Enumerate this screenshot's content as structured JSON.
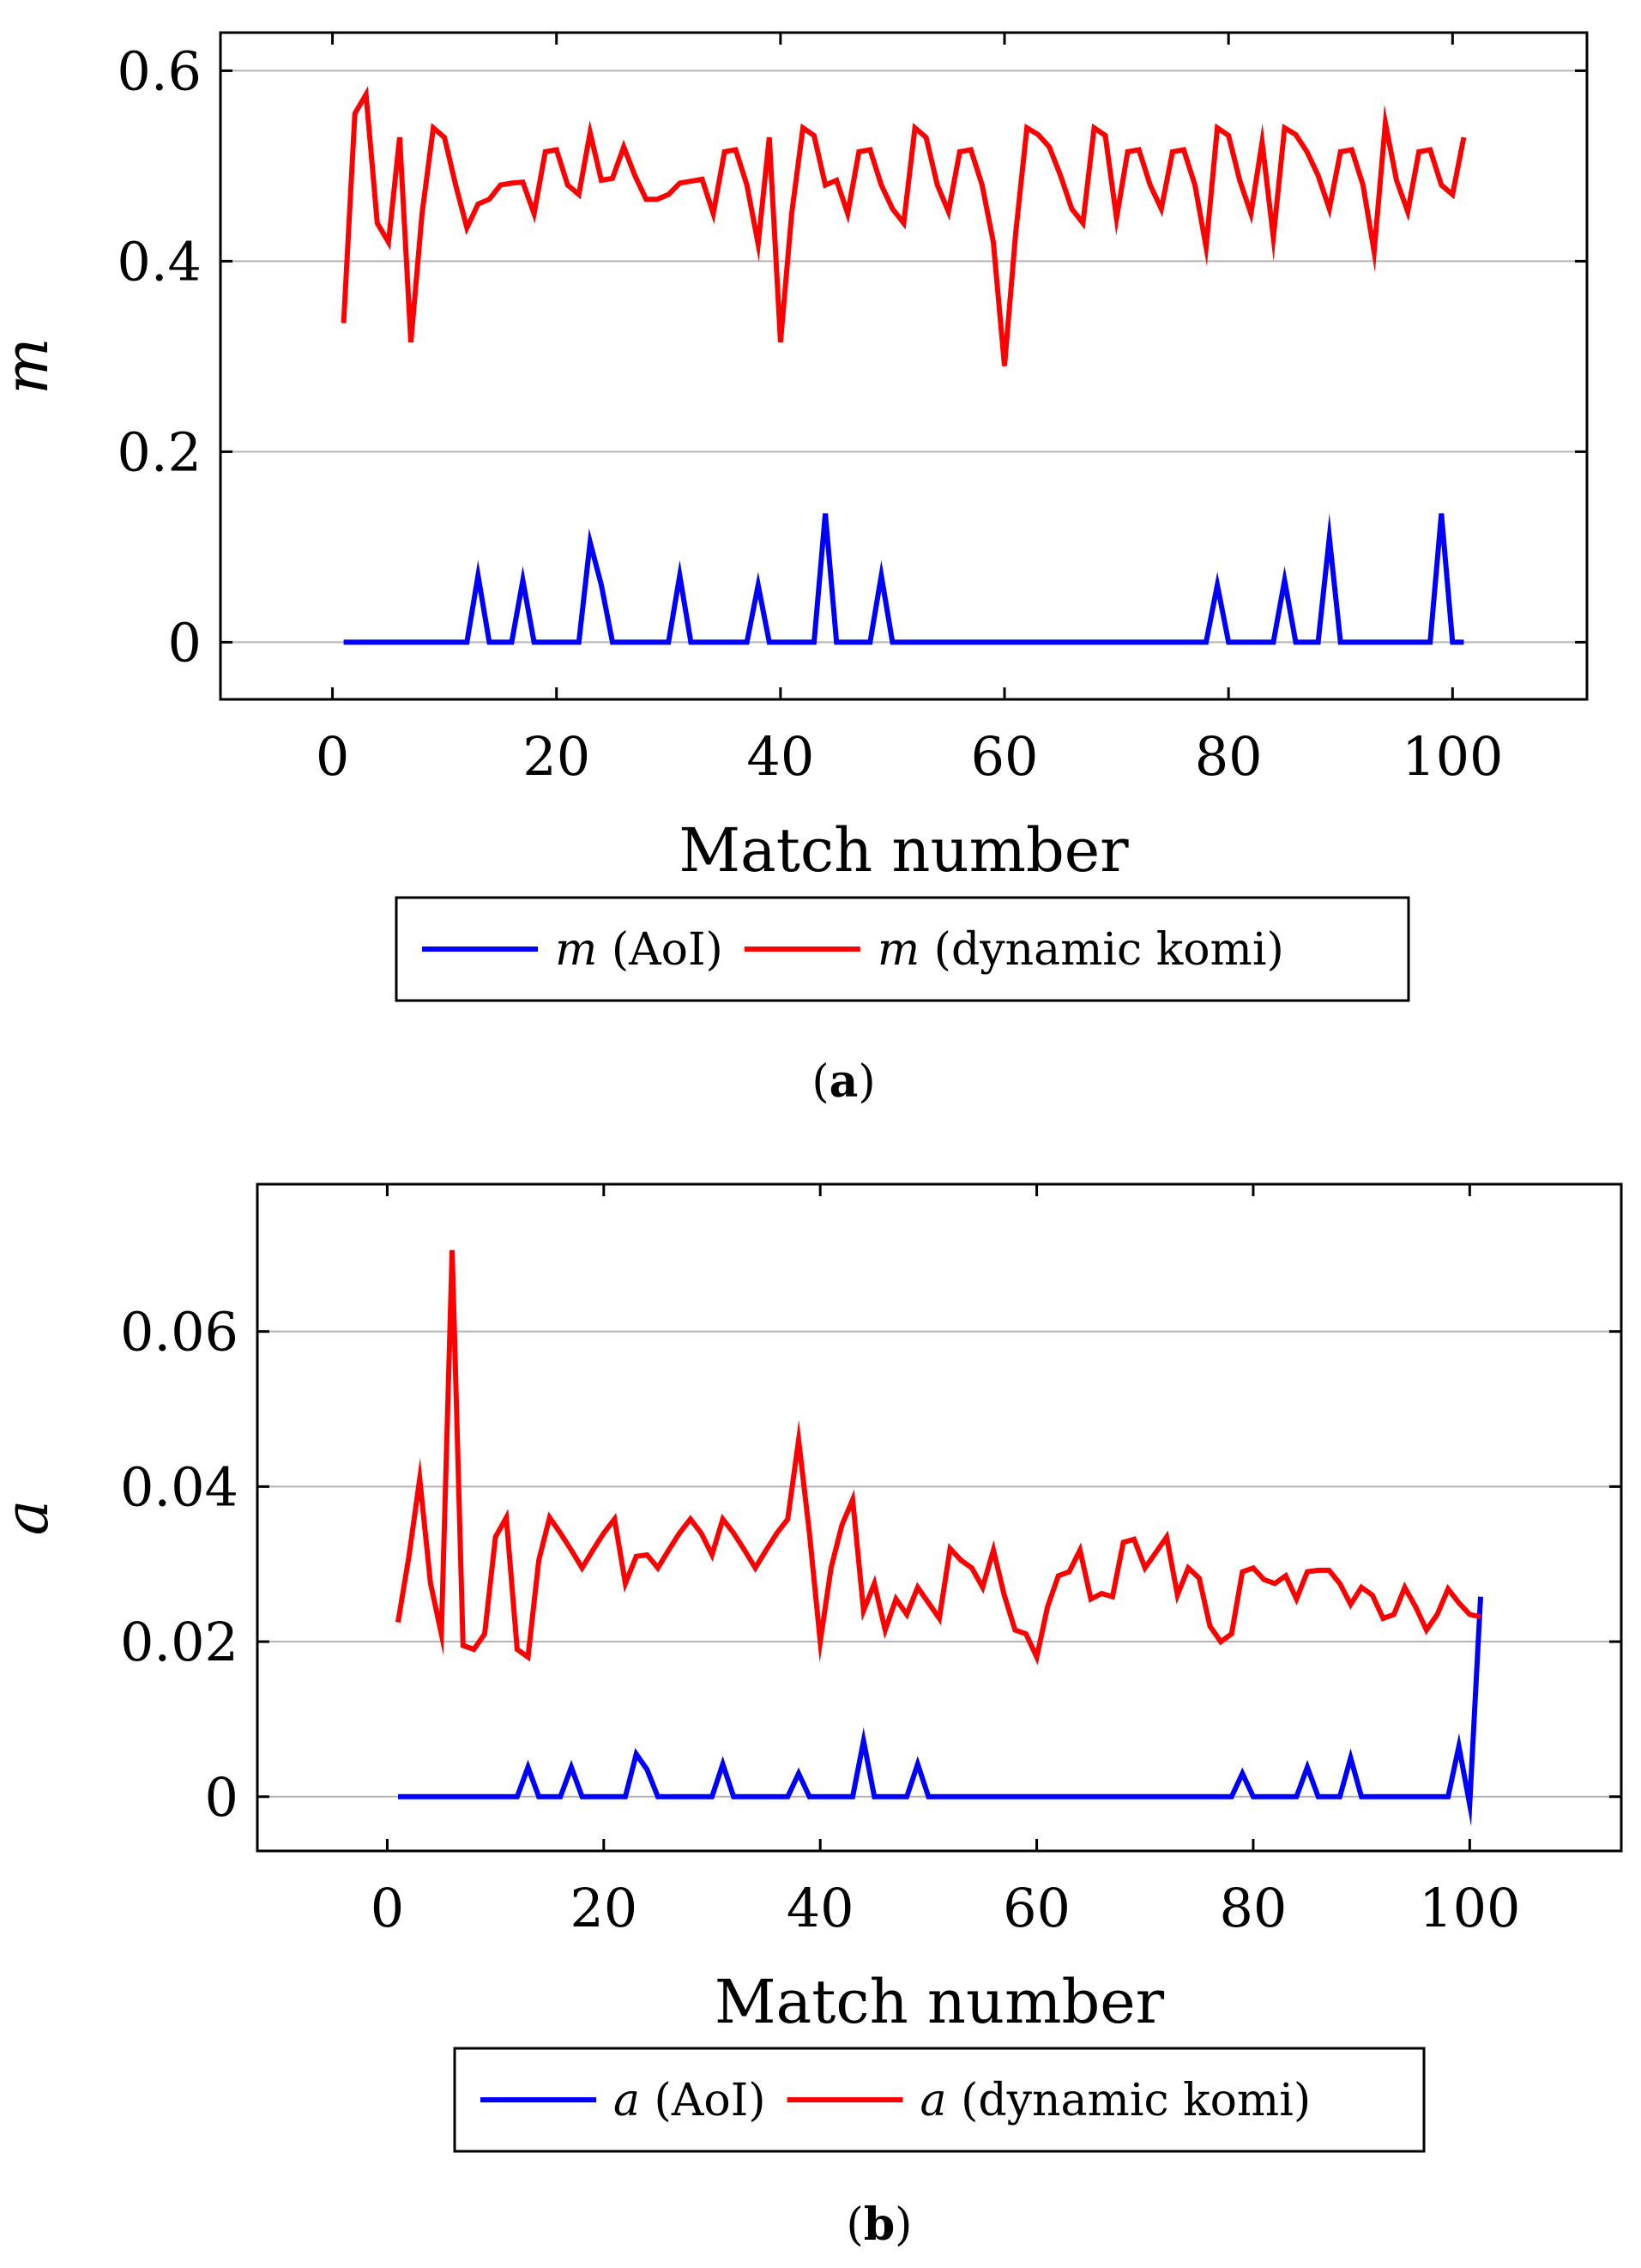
{
  "chart_data": [
    {
      "type": "line",
      "panel": "a",
      "caption": {
        "open": "(",
        "letter": "a",
        "close": ")"
      },
      "xlabel": "Match number",
      "ylabel": "m",
      "xlim": [
        -10,
        112
      ],
      "ylim": [
        -0.06,
        0.64
      ],
      "xticks": [
        0,
        20,
        40,
        60,
        80,
        100
      ],
      "xtick_labels": [
        "0",
        "20",
        "40",
        "60",
        "80",
        "100"
      ],
      "yticks": [
        0,
        0.2,
        0.4,
        0.6
      ],
      "ytick_labels": [
        "0",
        "0.2",
        "0.4",
        "0.6"
      ],
      "grid": "horizontal",
      "legend_position": "below",
      "series": [
        {
          "name": "m (AoI)",
          "legend_symbol": "m",
          "legend_rest": " (AoI)",
          "color": "#0000ff",
          "x": [
            1,
            12,
            13,
            14,
            16,
            17,
            18,
            22,
            23,
            24,
            25,
            30,
            31,
            32,
            37,
            38,
            39,
            43,
            44,
            45,
            48,
            49,
            50,
            78,
            79,
            80,
            84,
            85,
            86,
            88,
            89,
            90,
            98,
            99,
            100,
            101
          ],
          "y": [
            0,
            0,
            0.07,
            0,
            0,
            0.065,
            0,
            0,
            0.105,
            0.06,
            0,
            0,
            0.07,
            0,
            0,
            0.06,
            0,
            0,
            0.135,
            0,
            0,
            0.07,
            0,
            0,
            0.06,
            0,
            0,
            0.065,
            0,
            0,
            0.11,
            0,
            0,
            0.135,
            0,
            0
          ]
        },
        {
          "name": "m (dynamic komi)",
          "legend_symbol": "m",
          "legend_rest": " (dynamic komi)",
          "color": "#ff0000",
          "x": [
            1,
            2,
            3,
            4,
            5,
            6,
            7,
            8,
            9,
            10,
            11,
            12,
            13,
            14,
            15,
            16,
            17,
            18,
            19,
            20,
            21,
            22,
            23,
            24,
            25,
            26,
            27,
            28,
            29,
            30,
            31,
            32,
            33,
            34,
            35,
            36,
            37,
            38,
            39,
            40,
            41,
            42,
            43,
            44,
            45,
            46,
            47,
            48,
            49,
            50,
            51,
            52,
            53,
            54,
            55,
            56,
            57,
            58,
            59,
            60,
            61,
            62,
            63,
            64,
            65,
            66,
            67,
            68,
            69,
            70,
            71,
            72,
            73,
            74,
            75,
            76,
            77,
            78,
            79,
            80,
            81,
            82,
            83,
            84,
            85,
            86,
            87,
            88,
            89,
            90,
            91,
            92,
            93,
            94,
            95,
            96,
            97,
            98,
            99,
            100,
            101
          ],
          "y": [
            0.335,
            0.555,
            0.575,
            0.44,
            0.42,
            0.53,
            0.315,
            0.45,
            0.54,
            0.53,
            0.48,
            0.435,
            0.46,
            0.465,
            0.48,
            0.482,
            0.483,
            0.45,
            0.515,
            0.517,
            0.48,
            0.47,
            0.535,
            0.485,
            0.487,
            0.52,
            0.49,
            0.465,
            0.465,
            0.47,
            0.482,
            0.484,
            0.486,
            0.45,
            0.515,
            0.517,
            0.48,
            0.418,
            0.53,
            0.315,
            0.45,
            0.54,
            0.532,
            0.48,
            0.485,
            0.45,
            0.515,
            0.517,
            0.48,
            0.455,
            0.44,
            0.54,
            0.53,
            0.48,
            0.452,
            0.515,
            0.517,
            0.48,
            0.42,
            0.29,
            0.43,
            0.54,
            0.533,
            0.52,
            0.49,
            0.455,
            0.44,
            0.54,
            0.532,
            0.445,
            0.515,
            0.517,
            0.48,
            0.455,
            0.515,
            0.517,
            0.48,
            0.415,
            0.54,
            0.532,
            0.485,
            0.45,
            0.525,
            0.425,
            0.54,
            0.533,
            0.515,
            0.49,
            0.455,
            0.515,
            0.517,
            0.48,
            0.41,
            0.545,
            0.485,
            0.452,
            0.515,
            0.517,
            0.48,
            0.47,
            0.53
          ]
        }
      ]
    },
    {
      "type": "line",
      "panel": "b",
      "caption": {
        "open": "(",
        "letter": "b",
        "close": ")"
      },
      "xlabel": "Match number",
      "ylabel": "a",
      "xlim": [
        -12,
        114
      ],
      "ylim": [
        -0.007,
        0.079
      ],
      "xticks": [
        0,
        20,
        40,
        60,
        80,
        100
      ],
      "xtick_labels": [
        "0",
        "20",
        "40",
        "60",
        "80",
        "100"
      ],
      "yticks": [
        0,
        0.02,
        0.04,
        0.06
      ],
      "ytick_labels": [
        "0",
        "0.02",
        "0.04",
        "0.06"
      ],
      "grid": "horizontal",
      "legend_position": "below",
      "series": [
        {
          "name": "a (AoI)",
          "legend_symbol": "a",
          "legend_rest": " (AoI)",
          "color": "#0000ff",
          "x": [
            1,
            12,
            13,
            14,
            16,
            17,
            18,
            22,
            23,
            24,
            25,
            30,
            31,
            32,
            37,
            38,
            39,
            43,
            44,
            45,
            48,
            49,
            50,
            78,
            79,
            80,
            84,
            85,
            86,
            88,
            89,
            90,
            98,
            99,
            100,
            101
          ],
          "y": [
            0,
            0,
            0.0038,
            0,
            0,
            0.0038,
            0,
            0,
            0.0055,
            0.0035,
            0,
            0,
            0.0042,
            0,
            0,
            0.003,
            0,
            0,
            0.0072,
            0,
            0,
            0.0042,
            0,
            0,
            0.003,
            0,
            0,
            0.0038,
            0,
            0,
            0.005,
            0,
            0,
            0.0065,
            -0.001,
            0.0258
          ]
        },
        {
          "name": "a (dynamic komi)",
          "legend_symbol": "a",
          "legend_rest": " (dynamic komi)",
          "color": "#ff0000",
          "x": [
            1,
            2,
            3,
            4,
            5,
            6,
            7,
            8,
            9,
            10,
            11,
            12,
            13,
            14,
            15,
            16,
            17,
            18,
            19,
            20,
            21,
            22,
            23,
            24,
            25,
            26,
            27,
            28,
            29,
            30,
            31,
            32,
            33,
            34,
            35,
            36,
            37,
            38,
            39,
            40,
            41,
            42,
            43,
            44,
            45,
            46,
            47,
            48,
            49,
            50,
            51,
            52,
            53,
            54,
            55,
            56,
            57,
            58,
            59,
            60,
            61,
            62,
            63,
            64,
            65,
            66,
            67,
            68,
            69,
            70,
            71,
            72,
            73,
            74,
            75,
            76,
            77,
            78,
            79,
            80,
            81,
            82,
            83,
            84,
            85,
            86,
            87,
            88,
            89,
            90,
            91,
            92,
            93,
            94,
            95,
            96,
            97,
            98,
            99,
            100,
            101
          ],
          "y": [
            0.0225,
            0.031,
            0.041,
            0.0275,
            0.021,
            0.0705,
            0.0195,
            0.019,
            0.021,
            0.0335,
            0.036,
            0.019,
            0.018,
            0.0305,
            0.036,
            0.034,
            0.0318,
            0.0295,
            0.0318,
            0.034,
            0.0358,
            0.0275,
            0.031,
            0.0312,
            0.0295,
            0.0318,
            0.034,
            0.0358,
            0.034,
            0.0312,
            0.0358,
            0.034,
            0.0318,
            0.0295,
            0.0318,
            0.034,
            0.0358,
            0.046,
            0.034,
            0.02,
            0.0295,
            0.035,
            0.0383,
            0.024,
            0.0275,
            0.0215,
            0.0255,
            0.0235,
            0.027,
            0.025,
            0.023,
            0.032,
            0.0305,
            0.0295,
            0.027,
            0.0318,
            0.026,
            0.0215,
            0.021,
            0.018,
            0.0245,
            0.0285,
            0.029,
            0.0318,
            0.0255,
            0.0262,
            0.0258,
            0.0328,
            0.0332,
            0.0295,
            0.0315,
            0.0335,
            0.026,
            0.0295,
            0.0282,
            0.022,
            0.02,
            0.021,
            0.029,
            0.0295,
            0.028,
            0.0275,
            0.0285,
            0.0255,
            0.029,
            0.0292,
            0.0292,
            0.0275,
            0.0248,
            0.027,
            0.026,
            0.023,
            0.0235,
            0.027,
            0.0245,
            0.0215,
            0.0235,
            0.0268,
            0.025,
            0.0235,
            0.0232
          ]
        }
      ]
    }
  ]
}
